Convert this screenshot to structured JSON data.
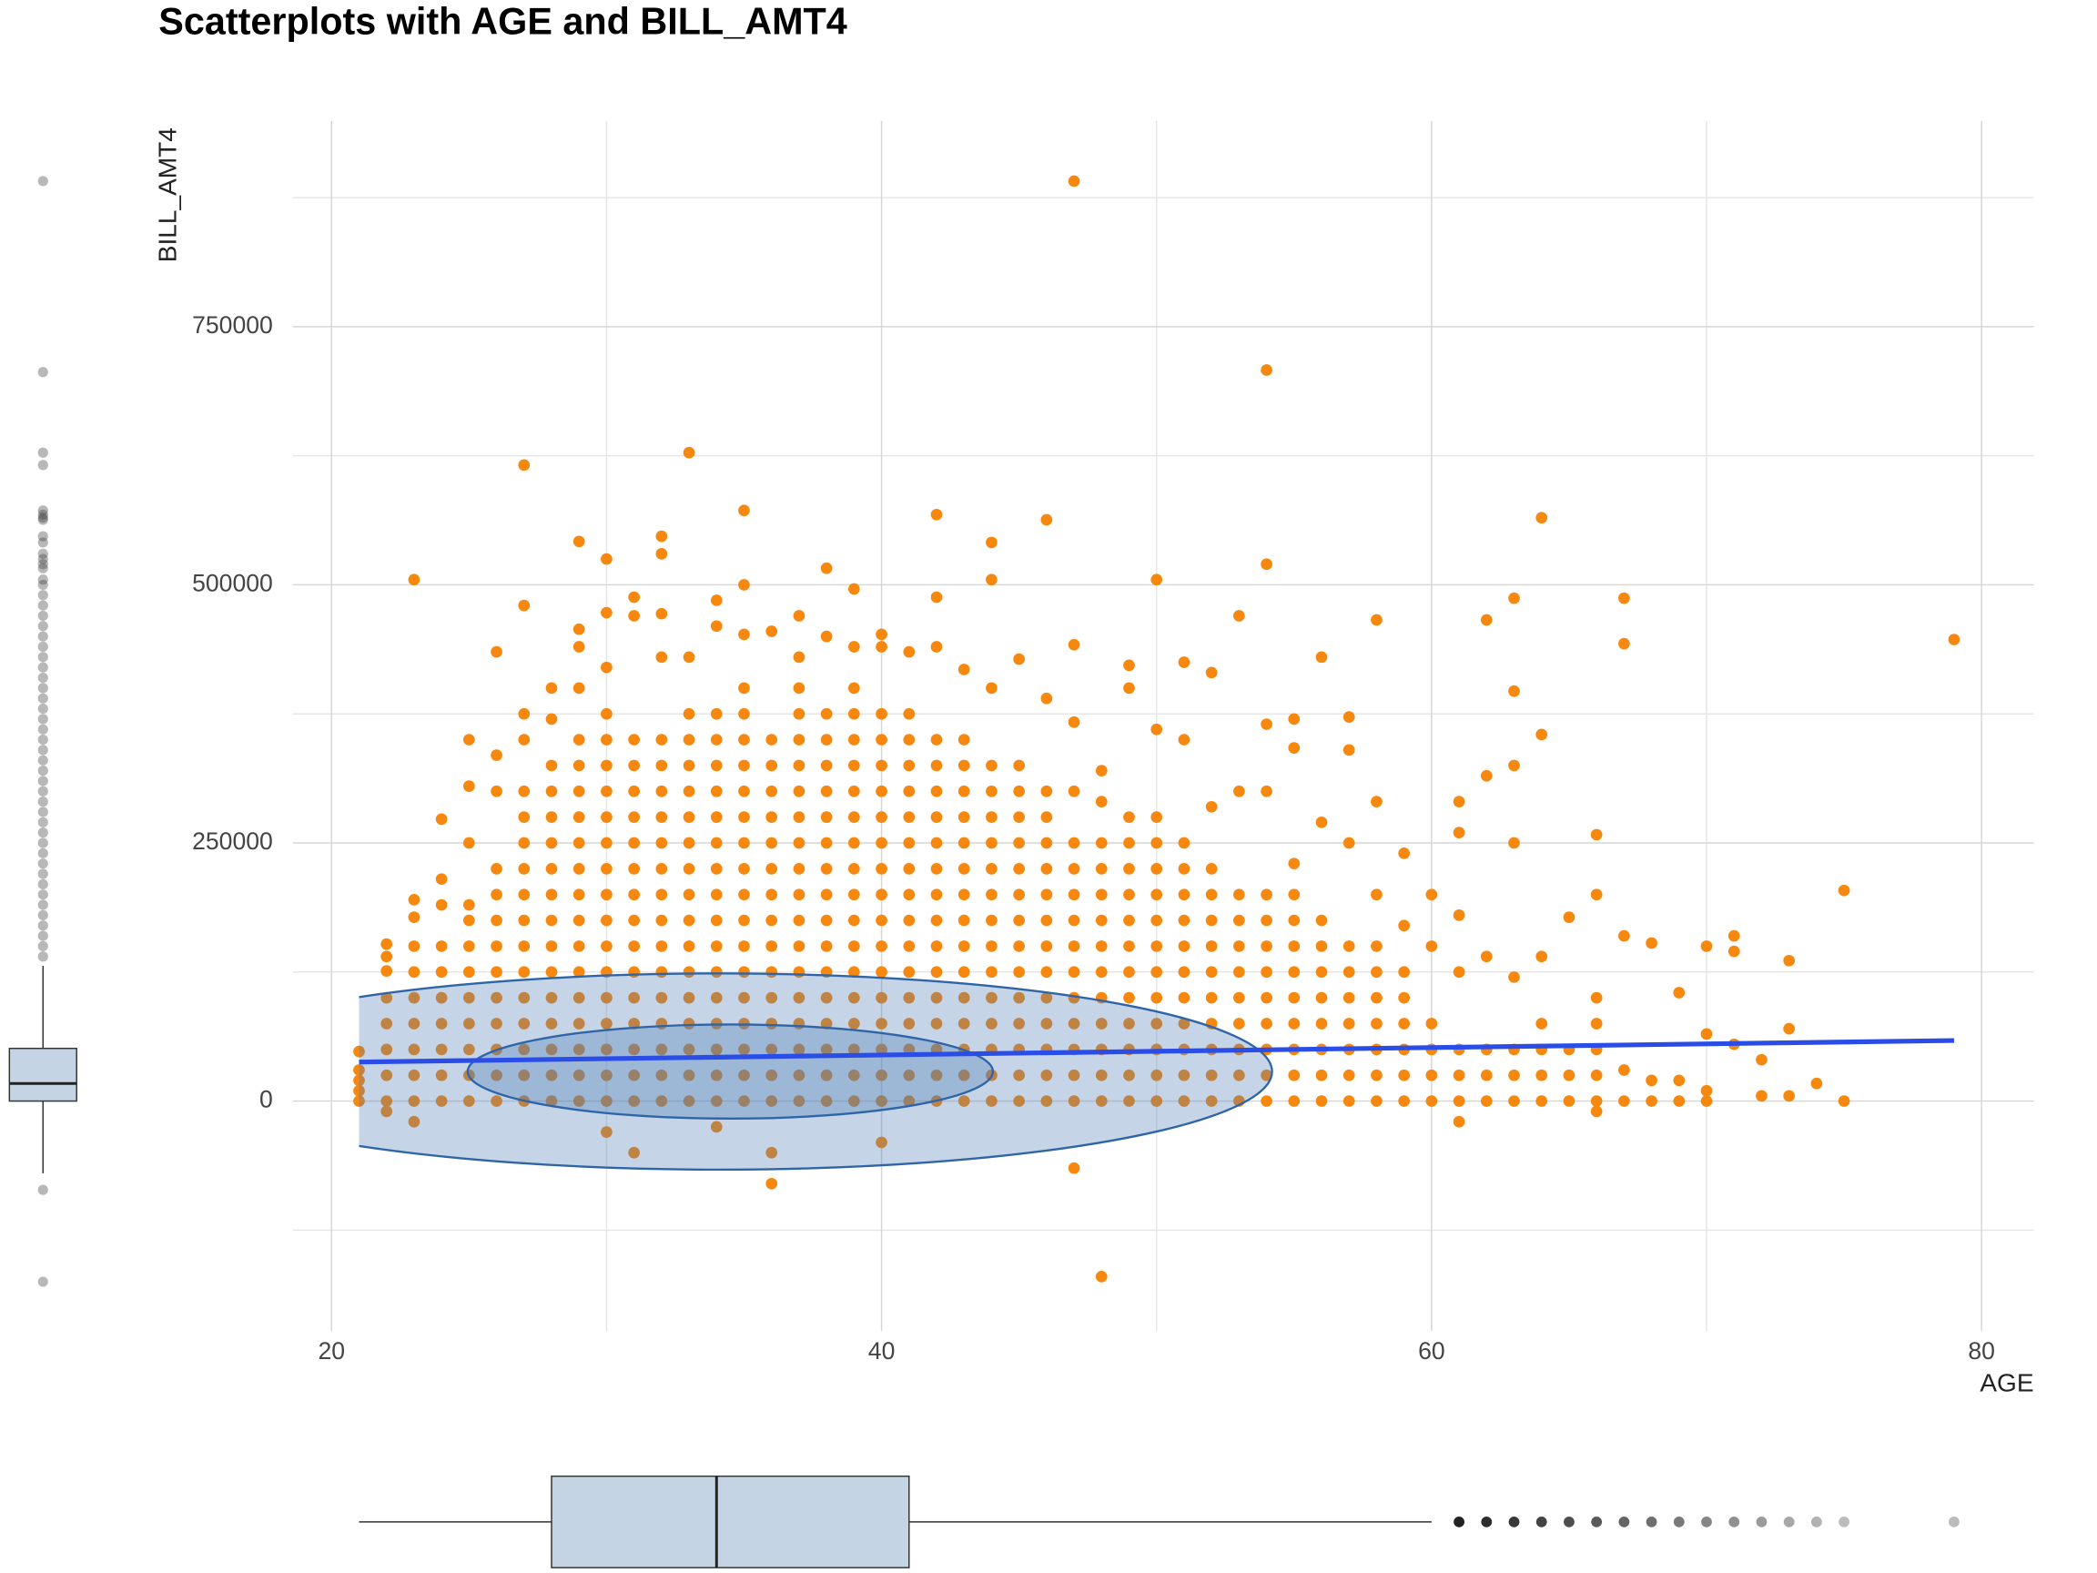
{
  "chart_data": {
    "type": "scatter",
    "title": "Scatterplots with AGE and BILL_AMT4",
    "x_label": "AGE",
    "y_label": "BILL_AMT4",
    "xlim": [
      18.6,
      81.9
    ],
    "ylim": [
      -222700,
      949200
    ],
    "xticks": [
      20,
      40,
      60,
      80
    ],
    "yticks": [
      0,
      250000,
      500000,
      750000
    ],
    "x_minor_grid": [
      30,
      50,
      70
    ],
    "y_minor_grid": [
      -125000,
      125000,
      375000,
      625000,
      875000
    ],
    "grid": true,
    "color": "#f7880f",
    "columns": [
      {
        "x": 21,
        "values": [
          0,
          10000,
          20000,
          30000,
          48000
        ]
      },
      {
        "x": 22,
        "values": [
          0,
          25000,
          50000,
          75000,
          100000,
          126000,
          140000,
          152000,
          -10000
        ]
      },
      {
        "x": 23,
        "values": [
          0,
          25000,
          50000,
          75000,
          100000,
          125000,
          150000,
          178000,
          195000,
          505000,
          -20000
        ]
      },
      {
        "x": 24,
        "values": [
          0,
          25000,
          50000,
          75000,
          100000,
          125000,
          150000,
          190000,
          215000,
          273000
        ]
      },
      {
        "x": 25,
        "values": [
          0,
          25000,
          50000,
          75000,
          100000,
          125000,
          150000,
          175000,
          190000,
          250000,
          305000,
          350000
        ]
      },
      {
        "x": 26,
        "values": [
          0,
          25000,
          50000,
          75000,
          100000,
          125000,
          150000,
          175000,
          200000,
          225000,
          300000,
          335000,
          435000
        ]
      },
      {
        "x": 27,
        "values": [
          0,
          25000,
          50000,
          75000,
          100000,
          125000,
          150000,
          175000,
          200000,
          225000,
          250000,
          275000,
          300000,
          350000,
          375000,
          480000,
          616000
        ]
      },
      {
        "x": 28,
        "values": [
          0,
          25000,
          50000,
          75000,
          100000,
          125000,
          150000,
          175000,
          200000,
          225000,
          250000,
          275000,
          300000,
          325000,
          370000,
          400000
        ]
      },
      {
        "x": 29,
        "values": [
          0,
          25000,
          50000,
          75000,
          100000,
          125000,
          150000,
          175000,
          200000,
          225000,
          250000,
          275000,
          300000,
          325000,
          350000,
          400000,
          440000,
          457000,
          542000
        ]
      },
      {
        "x": 30,
        "values": [
          0,
          25000,
          50000,
          75000,
          100000,
          125000,
          150000,
          175000,
          200000,
          225000,
          250000,
          275000,
          300000,
          325000,
          350000,
          375000,
          420000,
          473000,
          525000,
          -30000
        ]
      },
      {
        "x": 31,
        "values": [
          0,
          25000,
          50000,
          75000,
          100000,
          125000,
          150000,
          175000,
          200000,
          225000,
          250000,
          275000,
          300000,
          325000,
          350000,
          470000,
          488000,
          -50000
        ]
      },
      {
        "x": 32,
        "values": [
          0,
          25000,
          50000,
          75000,
          100000,
          125000,
          150000,
          175000,
          200000,
          225000,
          250000,
          275000,
          300000,
          325000,
          350000,
          430000,
          472000,
          530000,
          547000
        ]
      },
      {
        "x": 33,
        "values": [
          0,
          25000,
          50000,
          75000,
          100000,
          125000,
          150000,
          175000,
          200000,
          225000,
          250000,
          275000,
          300000,
          325000,
          350000,
          375000,
          430000,
          628000
        ]
      },
      {
        "x": 34,
        "values": [
          0,
          25000,
          50000,
          75000,
          100000,
          125000,
          150000,
          175000,
          200000,
          225000,
          250000,
          275000,
          300000,
          325000,
          350000,
          375000,
          460000,
          485000,
          -25000
        ]
      },
      {
        "x": 35,
        "values": [
          0,
          25000,
          50000,
          75000,
          100000,
          125000,
          150000,
          175000,
          200000,
          225000,
          250000,
          275000,
          300000,
          325000,
          350000,
          375000,
          400000,
          452000,
          500000,
          572000
        ]
      },
      {
        "x": 36,
        "values": [
          0,
          25000,
          50000,
          75000,
          100000,
          125000,
          150000,
          175000,
          200000,
          225000,
          250000,
          275000,
          300000,
          325000,
          350000,
          455000,
          -50000,
          -80000
        ]
      },
      {
        "x": 37,
        "values": [
          0,
          25000,
          50000,
          75000,
          100000,
          125000,
          150000,
          175000,
          200000,
          225000,
          250000,
          275000,
          300000,
          325000,
          350000,
          375000,
          400000,
          430000,
          470000
        ]
      },
      {
        "x": 38,
        "values": [
          0,
          25000,
          50000,
          75000,
          100000,
          125000,
          150000,
          175000,
          200000,
          225000,
          250000,
          275000,
          300000,
          325000,
          350000,
          375000,
          450000,
          516000
        ]
      },
      {
        "x": 39,
        "values": [
          0,
          25000,
          50000,
          75000,
          100000,
          125000,
          150000,
          175000,
          200000,
          225000,
          250000,
          275000,
          300000,
          325000,
          350000,
          375000,
          400000,
          440000,
          496000
        ]
      },
      {
        "x": 40,
        "values": [
          0,
          25000,
          50000,
          75000,
          100000,
          125000,
          150000,
          175000,
          200000,
          225000,
          250000,
          275000,
          300000,
          325000,
          350000,
          375000,
          440000,
          452000,
          -40000
        ]
      },
      {
        "x": 41,
        "values": [
          0,
          25000,
          50000,
          75000,
          100000,
          125000,
          150000,
          175000,
          200000,
          225000,
          250000,
          275000,
          300000,
          325000,
          350000,
          375000,
          435000
        ]
      },
      {
        "x": 42,
        "values": [
          0,
          25000,
          50000,
          75000,
          100000,
          125000,
          150000,
          175000,
          200000,
          225000,
          250000,
          275000,
          300000,
          325000,
          350000,
          440000,
          488000,
          568000
        ]
      },
      {
        "x": 43,
        "values": [
          0,
          25000,
          50000,
          75000,
          100000,
          125000,
          150000,
          175000,
          200000,
          225000,
          250000,
          275000,
          300000,
          325000,
          350000,
          418000
        ]
      },
      {
        "x": 44,
        "values": [
          0,
          25000,
          50000,
          75000,
          100000,
          125000,
          150000,
          175000,
          200000,
          225000,
          250000,
          275000,
          300000,
          325000,
          400000,
          505000,
          541000
        ]
      },
      {
        "x": 45,
        "values": [
          0,
          25000,
          50000,
          75000,
          100000,
          125000,
          150000,
          175000,
          200000,
          225000,
          250000,
          275000,
          300000,
          325000,
          428000
        ]
      },
      {
        "x": 46,
        "values": [
          0,
          25000,
          50000,
          75000,
          100000,
          125000,
          150000,
          175000,
          200000,
          225000,
          250000,
          275000,
          300000,
          390000,
          563000
        ]
      },
      {
        "x": 47,
        "values": [
          0,
          25000,
          50000,
          75000,
          100000,
          125000,
          150000,
          175000,
          200000,
          225000,
          250000,
          300000,
          367000,
          442000,
          891000,
          -65000
        ]
      },
      {
        "x": 48,
        "values": [
          0,
          25000,
          50000,
          75000,
          100000,
          125000,
          150000,
          175000,
          200000,
          225000,
          250000,
          290000,
          320000,
          -170000
        ]
      },
      {
        "x": 49,
        "values": [
          0,
          25000,
          50000,
          75000,
          100000,
          125000,
          150000,
          175000,
          200000,
          225000,
          250000,
          275000,
          400000,
          422000
        ]
      },
      {
        "x": 50,
        "values": [
          0,
          25000,
          50000,
          75000,
          100000,
          125000,
          150000,
          175000,
          200000,
          225000,
          250000,
          275000,
          360000,
          505000
        ]
      },
      {
        "x": 51,
        "values": [
          0,
          25000,
          50000,
          75000,
          100000,
          125000,
          150000,
          175000,
          200000,
          225000,
          250000,
          350000,
          425000
        ]
      },
      {
        "x": 52,
        "values": [
          0,
          25000,
          50000,
          75000,
          100000,
          125000,
          150000,
          175000,
          200000,
          225000,
          285000,
          415000
        ]
      },
      {
        "x": 53,
        "values": [
          0,
          25000,
          50000,
          75000,
          100000,
          125000,
          150000,
          175000,
          200000,
          300000,
          470000
        ]
      },
      {
        "x": 54,
        "values": [
          0,
          25000,
          50000,
          75000,
          100000,
          125000,
          150000,
          175000,
          200000,
          300000,
          365000,
          520000,
          708000
        ]
      },
      {
        "x": 55,
        "values": [
          0,
          25000,
          50000,
          75000,
          100000,
          125000,
          150000,
          175000,
          200000,
          230000,
          342000,
          370000
        ]
      },
      {
        "x": 56,
        "values": [
          0,
          25000,
          50000,
          75000,
          100000,
          125000,
          150000,
          175000,
          270000,
          430000
        ]
      },
      {
        "x": 57,
        "values": [
          0,
          25000,
          50000,
          75000,
          100000,
          125000,
          150000,
          250000,
          340000,
          372000
        ]
      },
      {
        "x": 58,
        "values": [
          0,
          25000,
          50000,
          75000,
          100000,
          125000,
          150000,
          200000,
          290000,
          466000
        ]
      },
      {
        "x": 59,
        "values": [
          0,
          25000,
          50000,
          75000,
          100000,
          125000,
          170000,
          240000
        ]
      },
      {
        "x": 60,
        "values": [
          0,
          25000,
          50000,
          75000,
          150000,
          200000
        ]
      },
      {
        "x": 61,
        "values": [
          0,
          25000,
          50000,
          125000,
          180000,
          260000,
          290000,
          -20000
        ]
      },
      {
        "x": 62,
        "values": [
          0,
          25000,
          50000,
          140000,
          315000,
          466000
        ]
      },
      {
        "x": 63,
        "values": [
          0,
          25000,
          50000,
          120000,
          250000,
          325000,
          397000,
          487000
        ]
      },
      {
        "x": 64,
        "values": [
          0,
          25000,
          50000,
          75000,
          140000,
          355000,
          565000
        ]
      },
      {
        "x": 65,
        "values": [
          0,
          25000,
          50000,
          178000
        ]
      },
      {
        "x": 66,
        "values": [
          0,
          25000,
          50000,
          75000,
          100000,
          200000,
          258000,
          -10000
        ]
      },
      {
        "x": 67,
        "values": [
          0,
          30000,
          160000,
          443000,
          487000
        ]
      },
      {
        "x": 68,
        "values": [
          0,
          20000,
          153000
        ]
      },
      {
        "x": 69,
        "values": [
          0,
          20000,
          105000
        ]
      },
      {
        "x": 70,
        "values": [
          0,
          10000,
          65000,
          150000
        ]
      },
      {
        "x": 71,
        "values": [
          55000,
          145000,
          160000
        ]
      },
      {
        "x": 72,
        "values": [
          5000,
          40000
        ]
      },
      {
        "x": 73,
        "values": [
          5000,
          70000,
          136000
        ]
      },
      {
        "x": 74,
        "values": [
          17000
        ]
      },
      {
        "x": 75,
        "values": [
          0,
          204000
        ]
      },
      {
        "x": 79,
        "values": [
          447000
        ]
      }
    ],
    "trend": {
      "color": "#2a4de8",
      "x": [
        21,
        79
      ],
      "values": [
        37800,
        58600
      ]
    },
    "ellipses": [
      {
        "cx": 34.1,
        "cy": 28600,
        "rx": 20.1,
        "ry": 95000,
        "fill": "#4a7ab5",
        "stroke": "#2f65a7"
      },
      {
        "cx": 34.5,
        "cy": 28600,
        "rx": 9.55,
        "ry": 45600,
        "fill": "#4a7ab5",
        "stroke": "#2f65a7"
      }
    ],
    "y_boxplot": {
      "fill": "#c5d4e4",
      "whisker_low": -70000,
      "q1": 0,
      "median": 17000,
      "q3": 51000,
      "whisker_high": 131000,
      "outliers": [
        891000,
        706000,
        628000,
        616000,
        572000,
        568000,
        565000,
        563000,
        547000,
        541000,
        530000,
        525000,
        520000,
        516000,
        505000,
        140000,
        150000,
        160000,
        170000,
        180000,
        190000,
        200000,
        210000,
        220000,
        230000,
        240000,
        250000,
        260000,
        270000,
        280000,
        290000,
        300000,
        310000,
        320000,
        330000,
        340000,
        350000,
        360000,
        370000,
        380000,
        390000,
        400000,
        410000,
        420000,
        430000,
        440000,
        450000,
        460000,
        470000,
        480000,
        490000,
        500000,
        -86000,
        -175000
      ]
    },
    "x_boxplot": {
      "fill": "#c5d4e4",
      "whisker_low": 21,
      "q1": 28,
      "median": 34,
      "q3": 41,
      "whisker_high": 60,
      "outliers": [
        61,
        62,
        63,
        64,
        65,
        66,
        67,
        68,
        69,
        70,
        71,
        72,
        73,
        74,
        75,
        79
      ]
    }
  }
}
